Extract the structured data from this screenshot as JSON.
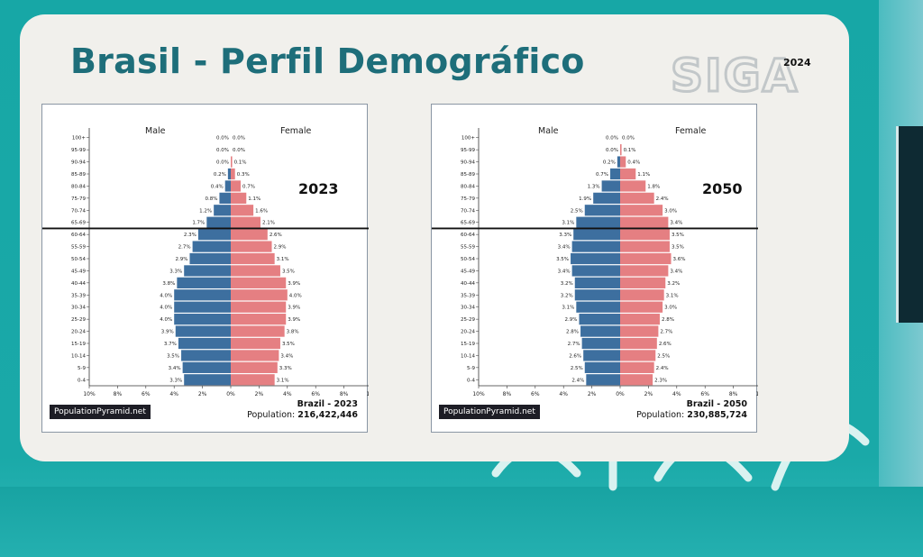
{
  "slide": {
    "title": "Brasil - Perfil Demográfico",
    "logo_text": "SIGA",
    "logo_year": "2024"
  },
  "colors": {
    "male": "#3d6f9f",
    "female": "#e57f82",
    "title": "#1e6e7a",
    "background": "#18a7a6",
    "card": "#f1f0ec",
    "logo": "#c2c7c9"
  },
  "chart_data": [
    {
      "type": "bar",
      "orientation": "horizontal",
      "year_label": "2023",
      "left_label": "Male",
      "right_label": "Female",
      "source": "PopulationPyramid.net",
      "country_year": "Brazil - 2023",
      "population_label": "Population:",
      "population_value": "216,422,446",
      "categories": [
        "0-4",
        "5-9",
        "10-14",
        "15-19",
        "20-24",
        "25-29",
        "30-34",
        "35-39",
        "40-44",
        "45-49",
        "50-54",
        "55-59",
        "60-64",
        "65-69",
        "70-74",
        "75-79",
        "80-84",
        "85-89",
        "90-94",
        "95-99",
        "100+"
      ],
      "series": [
        {
          "name": "Male",
          "values": [
            3.3,
            3.4,
            3.5,
            3.7,
            3.9,
            4.0,
            4.0,
            4.0,
            3.8,
            3.3,
            2.9,
            2.7,
            2.3,
            1.7,
            1.2,
            0.8,
            0.4,
            0.2,
            0.0,
            0.0,
            0.0
          ]
        },
        {
          "name": "Female",
          "values": [
            3.1,
            3.3,
            3.4,
            3.5,
            3.8,
            3.9,
            3.9,
            4.0,
            3.9,
            3.5,
            3.1,
            2.9,
            2.6,
            2.1,
            1.6,
            1.1,
            0.7,
            0.3,
            0.1,
            0.0,
            0.0
          ]
        }
      ],
      "value_labels": {
        "male": [
          "3.3%",
          "3.4%",
          "3.5%",
          "3.7%",
          "3.9%",
          "4.0%",
          "4.0%",
          "4.0%",
          "3.8%",
          "3.3%",
          "2.9%",
          "2.7%",
          "2.3%",
          "1.7%",
          "1.2%",
          "0.8%",
          "0.4%",
          "0.2%",
          "0.0%",
          "0.0%",
          "0.0%"
        ],
        "female": [
          "3.1%",
          "3.3%",
          "3.4%",
          "3.5%",
          "3.8%",
          "3.9%",
          "3.9%",
          "4.0%",
          "3.9%",
          "3.5%",
          "3.1%",
          "2.9%",
          "2.6%",
          "2.1%",
          "1.6%",
          "1.1%",
          "0.7%",
          "0.3%",
          "0.1%",
          "0.0%",
          "0.0%"
        ]
      },
      "x_ticks": [
        "10%",
        "8%",
        "6%",
        "4%",
        "2%",
        "0%",
        "2%",
        "4%",
        "6%",
        "8%",
        "10%"
      ],
      "xlim": [
        -10,
        10
      ],
      "reference_line_above": "60-64"
    },
    {
      "type": "bar",
      "orientation": "horizontal",
      "year_label": "2050",
      "left_label": "Male",
      "right_label": "Female",
      "source": "PopulationPyramid.net",
      "country_year": "Brazil - 2050",
      "population_label": "Population:",
      "population_value": "230,885,724",
      "categories": [
        "0-4",
        "5-9",
        "10-14",
        "15-19",
        "20-24",
        "25-29",
        "30-34",
        "35-39",
        "40-44",
        "45-49",
        "50-54",
        "55-59",
        "60-64",
        "65-69",
        "70-74",
        "75-79",
        "80-84",
        "85-89",
        "90-94",
        "95-99",
        "100+"
      ],
      "series": [
        {
          "name": "Male",
          "values": [
            2.4,
            2.5,
            2.6,
            2.7,
            2.8,
            2.9,
            3.1,
            3.2,
            3.2,
            3.4,
            3.5,
            3.4,
            3.3,
            3.1,
            2.5,
            1.9,
            1.3,
            0.7,
            0.2,
            0.0,
            0.0
          ]
        },
        {
          "name": "Female",
          "values": [
            2.3,
            2.4,
            2.5,
            2.6,
            2.7,
            2.8,
            3.0,
            3.1,
            3.2,
            3.4,
            3.6,
            3.5,
            3.5,
            3.4,
            3.0,
            2.4,
            1.8,
            1.1,
            0.4,
            0.1,
            0.0
          ]
        }
      ],
      "value_labels": {
        "male": [
          "2.4%",
          "2.5%",
          "2.6%",
          "2.7%",
          "2.8%",
          "2.9%",
          "3.1%",
          "3.2%",
          "3.2%",
          "3.4%",
          "3.5%",
          "3.4%",
          "3.3%",
          "3.1%",
          "2.5%",
          "1.9%",
          "1.3%",
          "0.7%",
          "0.2%",
          "0.0%",
          "0.0%"
        ],
        "female": [
          "2.3%",
          "2.4%",
          "2.5%",
          "2.6%",
          "2.7%",
          "2.8%",
          "3.0%",
          "3.1%",
          "3.2%",
          "3.4%",
          "3.6%",
          "3.5%",
          "3.5%",
          "3.4%",
          "3.0%",
          "2.4%",
          "1.8%",
          "1.1%",
          "0.4%",
          "0.1%",
          "0.0%"
        ]
      },
      "x_ticks": [
        "10%",
        "8%",
        "6%",
        "4%",
        "2%",
        "0%",
        "2%",
        "4%",
        "6%",
        "8%",
        "10%"
      ],
      "xlim": [
        -10,
        10
      ],
      "reference_line_above": "60-64"
    }
  ]
}
